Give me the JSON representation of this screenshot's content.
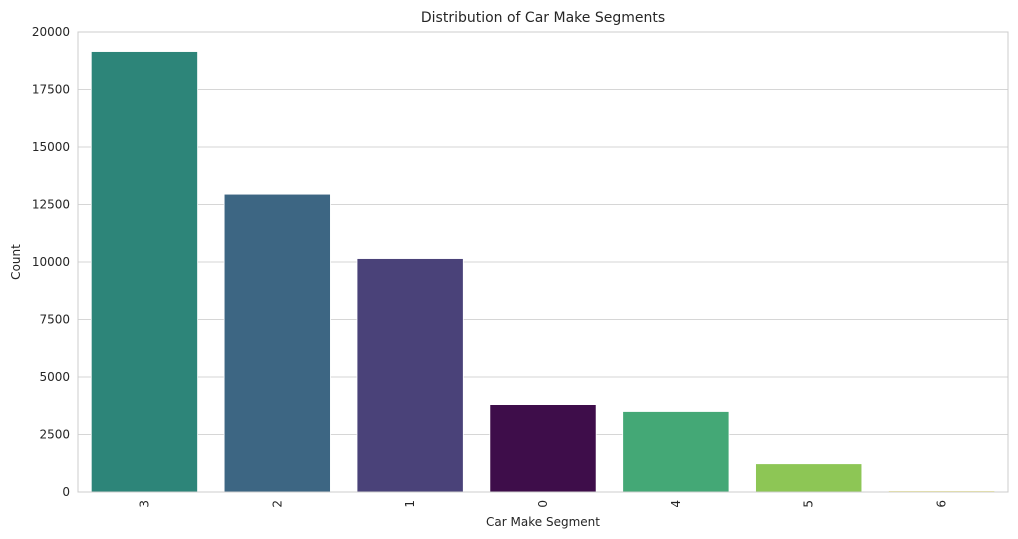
{
  "chart_data": {
    "type": "bar",
    "title": "Distribution of Car Make Segments",
    "xlabel": "Car Make Segment",
    "ylabel": "Count",
    "categories": [
      "3",
      "2",
      "1",
      "0",
      "4",
      "5",
      "6"
    ],
    "values": [
      19150,
      12950,
      10150,
      3800,
      3500,
      1230,
      60
    ],
    "colors": [
      "#2d8579",
      "#3d6683",
      "#4a4279",
      "#3e0d4a",
      "#44a876",
      "#8dc655",
      "#f5eb8e"
    ],
    "ylim": [
      0,
      20000
    ],
    "yticks": [
      0,
      2500,
      5000,
      7500,
      10000,
      12500,
      15000,
      17500,
      20000
    ],
    "grid": true,
    "xtick_rotation": 90
  }
}
